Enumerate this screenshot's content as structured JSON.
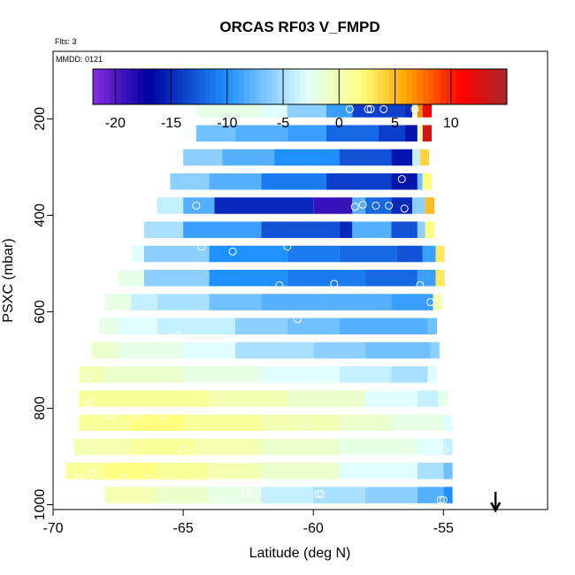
{
  "chart_data": {
    "type": "heatmap",
    "title": "ORCAS RF03 V_FMPD",
    "annotations": {
      "flights": "Flts: 3",
      "date": "MMDD: 0121"
    },
    "xlabel": "Latitude (deg N)",
    "ylabel": "PSXC (mbar)",
    "xlim": [
      -70,
      -51
    ],
    "ylim": [
      1010,
      60
    ],
    "y_reversed": true,
    "x_ticks": [
      -70,
      -65,
      -60,
      -55
    ],
    "x_tick_labels": [
      "-70",
      "-65",
      "-60",
      "-55"
    ],
    "y_ticks": [
      200,
      400,
      600,
      800,
      1000
    ],
    "y_tick_labels": [
      "200",
      "400",
      "600",
      "800",
      "1000"
    ],
    "colorbar": {
      "range": [
        -22,
        15
      ],
      "ticks": [
        -20,
        -15,
        -10,
        -5,
        0,
        5,
        10
      ],
      "tick_labels": [
        "-20",
        "-15",
        "-10",
        "-5",
        "0",
        "5",
        "10"
      ],
      "colors": [
        "#8a2be2",
        "#0000a0",
        "#1e90ff",
        "#e0ffff",
        "#ffff80",
        "#ffa500",
        "#ff0000",
        "#a52a2a"
      ]
    },
    "arrow": {
      "x": -53,
      "label": ""
    },
    "rows": [
      {
        "p": 180,
        "segments": [
          [
            -64.5,
            -2
          ],
          [
            -62,
            -3
          ],
          [
            -61,
            -6
          ],
          [
            -59.5,
            -9
          ],
          [
            -58.5,
            -14
          ],
          [
            -56.5,
            -15
          ],
          [
            -56.2,
            -1
          ],
          [
            -56,
            7
          ],
          [
            -55.8,
            12
          ]
        ]
      },
      {
        "p": 230,
        "segments": [
          [
            -64.5,
            -7
          ],
          [
            -63,
            -8
          ],
          [
            -61,
            -9
          ],
          [
            -59.5,
            -12
          ],
          [
            -57.5,
            -14
          ],
          [
            -56.5,
            -16
          ],
          [
            -56,
            0
          ],
          [
            -55.8,
            13
          ]
        ]
      },
      {
        "p": 280,
        "segments": [
          [
            -65,
            -6
          ],
          [
            -63.5,
            -8
          ],
          [
            -61.5,
            -10
          ],
          [
            -59,
            -13
          ],
          [
            -57,
            -16
          ],
          [
            -56.2,
            -4
          ],
          [
            -55.9,
            4
          ]
        ]
      },
      {
        "p": 330,
        "segments": [
          [
            -65.5,
            -6
          ],
          [
            -64,
            -8
          ],
          [
            -62,
            -11
          ],
          [
            -59.5,
            -14
          ],
          [
            -57,
            -16
          ],
          [
            -56,
            -7
          ],
          [
            -55.8,
            2
          ]
        ]
      },
      {
        "p": 380,
        "segments": [
          [
            -66,
            -4
          ],
          [
            -65,
            -8
          ],
          [
            -63.8,
            -15
          ],
          [
            -60,
            -19
          ],
          [
            -58.5,
            -8
          ],
          [
            -58,
            -12
          ],
          [
            -57,
            -15
          ],
          [
            -56.2,
            -6
          ],
          [
            -55.7,
            5
          ]
        ]
      },
      {
        "p": 430,
        "segments": [
          [
            -66.5,
            -5
          ],
          [
            -65,
            -9
          ],
          [
            -62,
            -13
          ],
          [
            -59,
            -15
          ],
          [
            -58.5,
            -8
          ],
          [
            -57,
            -13
          ],
          [
            -56,
            -6
          ],
          [
            -55.7,
            2
          ]
        ]
      },
      {
        "p": 480,
        "segments": [
          [
            -67,
            -3
          ],
          [
            -66.5,
            -6
          ],
          [
            -64,
            -10
          ],
          [
            -61,
            -11
          ],
          [
            -59,
            -12
          ],
          [
            -56.8,
            -13
          ],
          [
            -55.8,
            -9
          ],
          [
            -55.3,
            3
          ]
        ]
      },
      {
        "p": 530,
        "segments": [
          [
            -67.5,
            -2
          ],
          [
            -66.5,
            -6
          ],
          [
            -64,
            -10
          ],
          [
            -61,
            -11
          ],
          [
            -58,
            -12
          ],
          [
            -56,
            -9
          ],
          [
            -55.3,
            3
          ]
        ]
      },
      {
        "p": 580,
        "segments": [
          [
            -68,
            -2
          ],
          [
            -67,
            -4
          ],
          [
            -66,
            -5
          ],
          [
            -64,
            -7
          ],
          [
            -62,
            -8
          ],
          [
            -59.5,
            -8
          ],
          [
            -57,
            -9
          ],
          [
            -55.4,
            0
          ]
        ]
      },
      {
        "p": 630,
        "segments": [
          [
            -68.2,
            -2
          ],
          [
            -67.5,
            -3
          ],
          [
            -66,
            -4
          ],
          [
            -63,
            -6
          ],
          [
            -61,
            -7
          ],
          [
            -59,
            -8
          ],
          [
            -55.6,
            -7
          ]
        ]
      },
      {
        "p": 680,
        "segments": [
          [
            -68.5,
            -1
          ],
          [
            -67.5,
            -2
          ],
          [
            -65,
            -3
          ],
          [
            -63,
            -5
          ],
          [
            -60,
            -6
          ],
          [
            -58,
            -7
          ],
          [
            -55.5,
            -6
          ]
        ]
      },
      {
        "p": 730,
        "segments": [
          [
            -69,
            0
          ],
          [
            -68,
            -1
          ],
          [
            -65,
            -2
          ],
          [
            -62,
            -3
          ],
          [
            -59,
            -4
          ],
          [
            -57,
            -5
          ],
          [
            -55.6,
            -3
          ]
        ]
      },
      {
        "p": 780,
        "segments": [
          [
            -69,
            1
          ],
          [
            -67,
            1
          ],
          [
            -64,
            0
          ],
          [
            -61,
            -1
          ],
          [
            -58,
            -3
          ],
          [
            -56,
            -4
          ],
          [
            -55.2,
            -2
          ]
        ]
      },
      {
        "p": 830,
        "segments": [
          [
            -69,
            1
          ],
          [
            -67,
            2
          ],
          [
            -65,
            1
          ],
          [
            -62,
            0
          ],
          [
            -59,
            -1
          ],
          [
            -57,
            -2
          ],
          [
            -55,
            -3
          ]
        ]
      },
      {
        "p": 880,
        "segments": [
          [
            -69.2,
            0
          ],
          [
            -67,
            1
          ],
          [
            -64.5,
            0
          ],
          [
            -62,
            -1
          ],
          [
            -59,
            -2
          ],
          [
            -56,
            -3
          ],
          [
            -55,
            -4
          ]
        ]
      },
      {
        "p": 930,
        "segments": [
          [
            -69.5,
            1
          ],
          [
            -68,
            2
          ],
          [
            -66,
            1
          ],
          [
            -64,
            0
          ],
          [
            -62,
            -1
          ],
          [
            -59,
            -3
          ],
          [
            -56,
            -5
          ],
          [
            -55,
            -7
          ]
        ]
      },
      {
        "p": 980,
        "segments": [
          [
            -68,
            0
          ],
          [
            -66,
            -1
          ],
          [
            -64,
            -2
          ],
          [
            -62,
            -4
          ],
          [
            -60,
            -5
          ],
          [
            -58,
            -6
          ],
          [
            -56,
            -8
          ],
          [
            -55,
            -10
          ]
        ]
      }
    ],
    "points": [
      [
        -64.6,
        180
      ],
      [
        -58.6,
        180
      ],
      [
        -57.9,
        180
      ],
      [
        -57.8,
        180
      ],
      [
        -57.3,
        180
      ],
      [
        -56.1,
        180
      ],
      [
        -56.6,
        325
      ],
      [
        -64.5,
        380
      ],
      [
        -58.4,
        382
      ],
      [
        -58.1,
        378
      ],
      [
        -57.6,
        380
      ],
      [
        -57.1,
        380
      ],
      [
        -56.5,
        386
      ],
      [
        -64.3,
        465
      ],
      [
        -63.1,
        475
      ],
      [
        -61.0,
        465
      ],
      [
        -61.3,
        545
      ],
      [
        -59.2,
        542
      ],
      [
        -55.9,
        545
      ],
      [
        -55.5,
        580
      ],
      [
        -60.6,
        615
      ],
      [
        -65.2,
        650
      ],
      [
        -63.1,
        660
      ],
      [
        -61.9,
        750
      ],
      [
        -59.7,
        748
      ],
      [
        -55.5,
        750
      ],
      [
        -68.6,
        735
      ],
      [
        -68.6,
        790
      ],
      [
        -67.8,
        815
      ],
      [
        -66.8,
        815
      ],
      [
        -65.8,
        815
      ],
      [
        -60.3,
        840
      ],
      [
        -65.0,
        885
      ],
      [
        -55.0,
        885
      ],
      [
        -69.0,
        945
      ],
      [
        -68.5,
        935
      ],
      [
        -67.3,
        945
      ],
      [
        -66.4,
        945
      ],
      [
        -62.6,
        975
      ],
      [
        -62.4,
        975
      ],
      [
        -59.8,
        978
      ],
      [
        -59.7,
        978
      ],
      [
        -55.1,
        990
      ],
      [
        -55.0,
        990
      ]
    ]
  }
}
